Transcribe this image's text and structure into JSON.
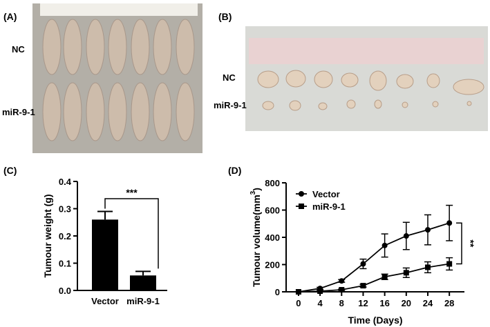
{
  "figure": {
    "panels": [
      {
        "label": "(A)",
        "rows": [
          "NC",
          "miR-9-1"
        ]
      },
      {
        "label": "(B)",
        "rows": [
          "NC",
          "miR-9-1"
        ]
      }
    ]
  },
  "chart_data": [
    {
      "type": "bar",
      "panel_label": "(C)",
      "ylabel": "Tumour weight (g)",
      "categories": [
        "Vector",
        "miR-9-1"
      ],
      "values": [
        0.26,
        0.055
      ],
      "errors": [
        0.03,
        0.015
      ],
      "color": "#000000",
      "ylim": [
        0,
        0.4
      ],
      "yticks": [
        {
          "value": 0,
          "label": "0.0"
        },
        0.1,
        0.2,
        0.3,
        0.4
      ],
      "annotation": "***"
    },
    {
      "type": "line",
      "panel_label": "(D)",
      "ylabel": "Tumour volume(mm",
      "ylabel_sup": "3",
      "ylabel_end": ")",
      "xlabel": "Time (Days)",
      "x": [
        0,
        4,
        8,
        12,
        16,
        20,
        24,
        28
      ],
      "xlim": [
        -2.3,
        30.8
      ],
      "xticks": [
        0,
        4,
        8,
        12,
        16,
        20,
        24,
        28
      ],
      "ylim": [
        0,
        800
      ],
      "yticks": [
        0,
        200,
        400,
        600,
        800
      ],
      "legend": "upper left",
      "annotation": "**",
      "series": [
        {
          "name": "Vector",
          "color": "#000000",
          "marker": "circle",
          "values": [
            0,
            25,
            80,
            205,
            340,
            410,
            455,
            505
          ],
          "errors": [
            0,
            8,
            10,
            35,
            85,
            100,
            110,
            130
          ]
        },
        {
          "name": "miR-9-1",
          "color": "#000000",
          "marker": "square",
          "values": [
            0,
            5,
            15,
            45,
            110,
            140,
            180,
            205
          ],
          "errors": [
            0,
            3,
            5,
            10,
            20,
            35,
            40,
            45
          ]
        }
      ]
    }
  ]
}
